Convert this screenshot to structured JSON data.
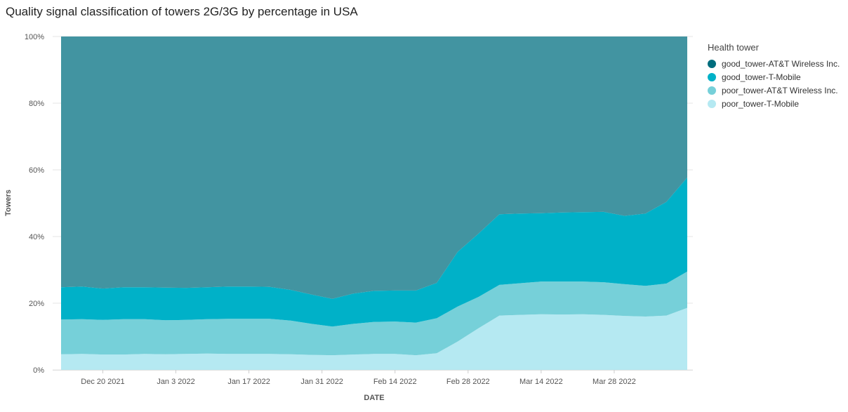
{
  "chart_data": {
    "type": "area",
    "stacked": "percent",
    "title": "Quality signal classification of towers 2G/3G by percentage in USA",
    "xlabel": "DATE",
    "ylabel": "Towers",
    "x_ticks": [
      {
        "label": "Dec 20 2021",
        "date": "2021-12-20"
      },
      {
        "label": "Jan 3 2022",
        "date": "2022-01-03"
      },
      {
        "label": "Jan 17 2022",
        "date": "2022-01-17"
      },
      {
        "label": "Jan 31 2022",
        "date": "2022-01-31"
      },
      {
        "label": "Feb 14 2022",
        "date": "2022-02-14"
      },
      {
        "label": "Feb 28 2022",
        "date": "2022-02-28"
      },
      {
        "label": "Mar 14 2022",
        "date": "2022-03-14"
      },
      {
        "label": "Mar 28 2022",
        "date": "2022-03-28"
      }
    ],
    "y_ticks": [
      "0%",
      "20%",
      "40%",
      "60%",
      "80%",
      "100%"
    ],
    "ylim": [
      0,
      100
    ],
    "grid": true,
    "legend": {
      "title": "Health tower",
      "position": "right"
    },
    "x": [
      "2021-12-12",
      "2021-12-16",
      "2021-12-20",
      "2021-12-24",
      "2021-12-28",
      "2022-01-01",
      "2022-01-05",
      "2022-01-09",
      "2022-01-13",
      "2022-01-17",
      "2022-01-21",
      "2022-01-25",
      "2022-01-29",
      "2022-02-02",
      "2022-02-06",
      "2022-02-10",
      "2022-02-14",
      "2022-02-18",
      "2022-02-22",
      "2022-02-26",
      "2022-03-02",
      "2022-03-06",
      "2022-03-10",
      "2022-03-14",
      "2022-03-18",
      "2022-03-22",
      "2022-03-26",
      "2022-03-30",
      "2022-04-03",
      "2022-04-07",
      "2022-04-11"
    ],
    "series": [
      {
        "name": "poor_tower-T-Mobile",
        "color": "#b5e9f2",
        "values": [
          4.7,
          4.8,
          4.6,
          4.6,
          4.8,
          4.7,
          4.8,
          4.9,
          4.8,
          4.8,
          4.8,
          4.7,
          4.5,
          4.4,
          4.6,
          4.8,
          4.8,
          4.4,
          5.0,
          8.5,
          12.5,
          16.3,
          16.5,
          16.7,
          16.6,
          16.7,
          16.5,
          16.2,
          16.0,
          16.3,
          18.6
        ]
      },
      {
        "name": "poor_tower-AT&T Wireless Inc.",
        "color": "#76d0d9",
        "values": [
          10.4,
          10.4,
          10.4,
          10.6,
          10.4,
          10.2,
          10.2,
          10.3,
          10.5,
          10.5,
          10.5,
          10.1,
          9.3,
          8.6,
          9.2,
          9.6,
          9.7,
          9.8,
          10.5,
          10.5,
          9.4,
          9.2,
          9.5,
          9.8,
          9.9,
          9.8,
          9.8,
          9.5,
          9.2,
          9.6,
          10.9
        ]
      },
      {
        "name": "good_tower-T-Mobile",
        "color": "#00b1c8",
        "values": [
          9.7,
          9.8,
          9.4,
          9.6,
          9.6,
          9.8,
          9.6,
          9.6,
          9.7,
          9.7,
          9.6,
          9.2,
          8.8,
          8.3,
          9.1,
          9.3,
          9.3,
          9.6,
          10.6,
          16.4,
          19.0,
          21.2,
          20.9,
          20.5,
          20.7,
          20.8,
          21.1,
          20.5,
          21.7,
          24.5,
          28.2
        ]
      },
      {
        "name": "good_tower-AT&T Wireless Inc.",
        "color": "#4294a1",
        "values": [
          75.2,
          75.0,
          75.6,
          75.2,
          75.2,
          75.3,
          75.4,
          75.2,
          75.0,
          75.0,
          75.1,
          76.0,
          77.4,
          78.7,
          77.1,
          76.3,
          76.2,
          76.2,
          73.9,
          64.6,
          59.1,
          53.3,
          53.1,
          53.0,
          52.8,
          52.7,
          52.6,
          53.8,
          53.1,
          49.6,
          42.3
        ]
      }
    ]
  },
  "legend_items": [
    {
      "label": "good_tower-AT&T Wireless Inc.",
      "color": "#006d7d"
    },
    {
      "label": "good_tower-T-Mobile",
      "color": "#00b1c8"
    },
    {
      "label": "poor_tower-AT&T Wireless Inc.",
      "color": "#76d0d9"
    },
    {
      "label": "poor_tower-T-Mobile",
      "color": "#b5e9f2"
    }
  ]
}
